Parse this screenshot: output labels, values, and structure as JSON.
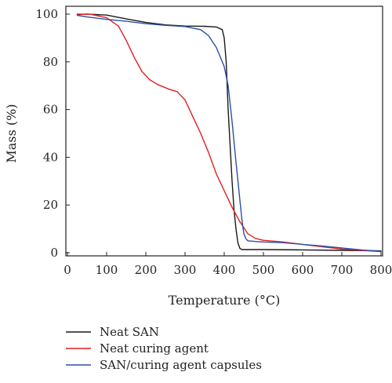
{
  "chart_data": {
    "type": "line",
    "xlabel": "Temperature (°C)",
    "ylabel": "Mass (%)",
    "xlim": [
      0,
      800
    ],
    "ylim": [
      0,
      100
    ],
    "x_ticks": [
      0,
      100,
      200,
      300,
      400,
      500,
      600,
      700,
      800
    ],
    "y_ticks": [
      0,
      20,
      40,
      60,
      80,
      100
    ],
    "grid": false,
    "legend_position": "bottom",
    "series": [
      {
        "name": "Neat SAN",
        "color": "#1a1a1a",
        "points": [
          [
            25,
            99.8
          ],
          [
            50,
            100
          ],
          [
            100,
            99.6
          ],
          [
            150,
            98
          ],
          [
            200,
            96.5
          ],
          [
            250,
            95.5
          ],
          [
            300,
            95
          ],
          [
            350,
            94.9
          ],
          [
            380,
            94.6
          ],
          [
            395,
            93.5
          ],
          [
            400,
            90
          ],
          [
            405,
            80
          ],
          [
            410,
            60
          ],
          [
            415,
            45
          ],
          [
            420,
            30
          ],
          [
            425,
            18
          ],
          [
            430,
            10
          ],
          [
            435,
            4
          ],
          [
            440,
            1.8
          ],
          [
            445,
            1.3
          ],
          [
            450,
            1.3
          ],
          [
            500,
            1.3
          ],
          [
            600,
            1.2
          ],
          [
            700,
            1.0
          ],
          [
            800,
            0.8
          ]
        ]
      },
      {
        "name": "Neat curing agent",
        "color": "#e02020",
        "points": [
          [
            25,
            100
          ],
          [
            60,
            99.9
          ],
          [
            100,
            98.5
          ],
          [
            130,
            95
          ],
          [
            150,
            89
          ],
          [
            170,
            82
          ],
          [
            190,
            76
          ],
          [
            210,
            72.5
          ],
          [
            230,
            70.5
          ],
          [
            260,
            68.5
          ],
          [
            280,
            67.5
          ],
          [
            300,
            64
          ],
          [
            320,
            57
          ],
          [
            340,
            50
          ],
          [
            360,
            42
          ],
          [
            380,
            33
          ],
          [
            400,
            26
          ],
          [
            420,
            19
          ],
          [
            440,
            13
          ],
          [
            460,
            8
          ],
          [
            480,
            6
          ],
          [
            500,
            5.2
          ],
          [
            550,
            4.5
          ],
          [
            600,
            3.5
          ],
          [
            650,
            2.5
          ],
          [
            700,
            1.5
          ],
          [
            750,
            1.0
          ],
          [
            800,
            0.5
          ]
        ]
      },
      {
        "name": "SAN/curing agent capsules",
        "color": "#2b4fa8",
        "points": [
          [
            25,
            99.5
          ],
          [
            50,
            98.8
          ],
          [
            100,
            97.8
          ],
          [
            150,
            97
          ],
          [
            200,
            96
          ],
          [
            250,
            95.3
          ],
          [
            300,
            94.8
          ],
          [
            340,
            93.5
          ],
          [
            360,
            91
          ],
          [
            380,
            86
          ],
          [
            400,
            78
          ],
          [
            410,
            70
          ],
          [
            420,
            55
          ],
          [
            430,
            38
          ],
          [
            440,
            22
          ],
          [
            445,
            14
          ],
          [
            450,
            8
          ],
          [
            455,
            6
          ],
          [
            460,
            5
          ],
          [
            480,
            4.7
          ],
          [
            500,
            4.5
          ],
          [
            550,
            4.2
          ],
          [
            600,
            3.5
          ],
          [
            650,
            2.8
          ],
          [
            700,
            2.0
          ],
          [
            750,
            1.2
          ],
          [
            800,
            0.6
          ]
        ]
      }
    ]
  }
}
